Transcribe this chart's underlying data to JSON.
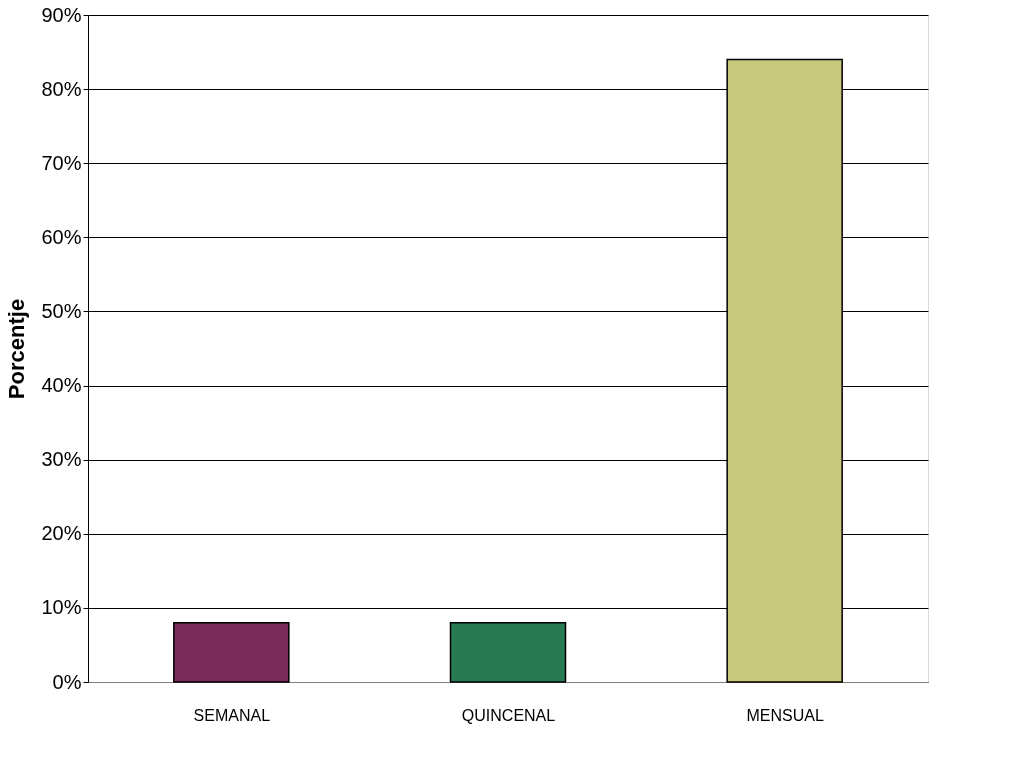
{
  "chart_data": {
    "type": "bar",
    "ylabel": "Porcentje",
    "categories": [
      "SEMANAL",
      "QUINCENAL",
      "MENSUAL"
    ],
    "values": [
      8,
      8,
      84
    ],
    "colors": [
      "#7a2a58",
      "#277a52",
      "#c9c97e"
    ],
    "ylim": [
      0,
      90
    ],
    "yticks": [
      {
        "value": 0,
        "label": "0%"
      },
      {
        "value": 10,
        "label": "10%"
      },
      {
        "value": 20,
        "label": "20%"
      },
      {
        "value": 30,
        "label": "30%"
      },
      {
        "value": 40,
        "label": "40%"
      },
      {
        "value": 50,
        "label": "50%"
      },
      {
        "value": 60,
        "label": "60%"
      },
      {
        "value": 70,
        "label": "70%"
      },
      {
        "value": 80,
        "label": "80%"
      },
      {
        "value": 90,
        "label": "90%"
      }
    ],
    "grid": "y"
  }
}
